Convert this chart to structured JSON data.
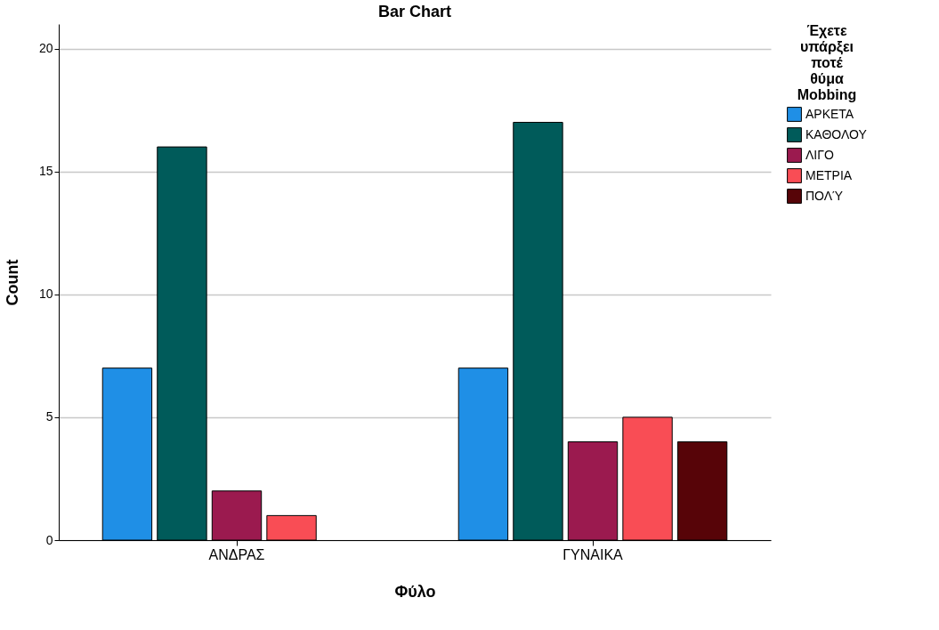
{
  "chart_data": {
    "type": "bar",
    "title": "Bar Chart",
    "xlabel": "Φύλο",
    "ylabel": "Count",
    "legend_title": "Έχετε υπάρξει ποτέ θύμα Mobbing",
    "categories": [
      "ΑΝΔΡΑΣ",
      "ΓΥΝΑΙΚΑ"
    ],
    "series": [
      {
        "name": "ΑΡΚΕΤΑ",
        "color": "#1f8fe6",
        "values": [
          7,
          7
        ]
      },
      {
        "name": "ΚΑΘΟΛΟΥ",
        "color": "#005b5a",
        "values": [
          16,
          17
        ]
      },
      {
        "name": "ΛΙΓΟ",
        "color": "#9b1a4f",
        "values": [
          2,
          4
        ]
      },
      {
        "name": "ΜΕΤΡΙΑ",
        "color": "#f94d55",
        "values": [
          1,
          5
        ]
      },
      {
        "name": "ΠΟΛΎ",
        "color": "#570408",
        "values": [
          null,
          4
        ]
      }
    ],
    "ylim": [
      0,
      21
    ],
    "yticks": [
      0,
      5,
      10,
      15,
      20
    ],
    "grid": "y",
    "legend": "top right"
  }
}
